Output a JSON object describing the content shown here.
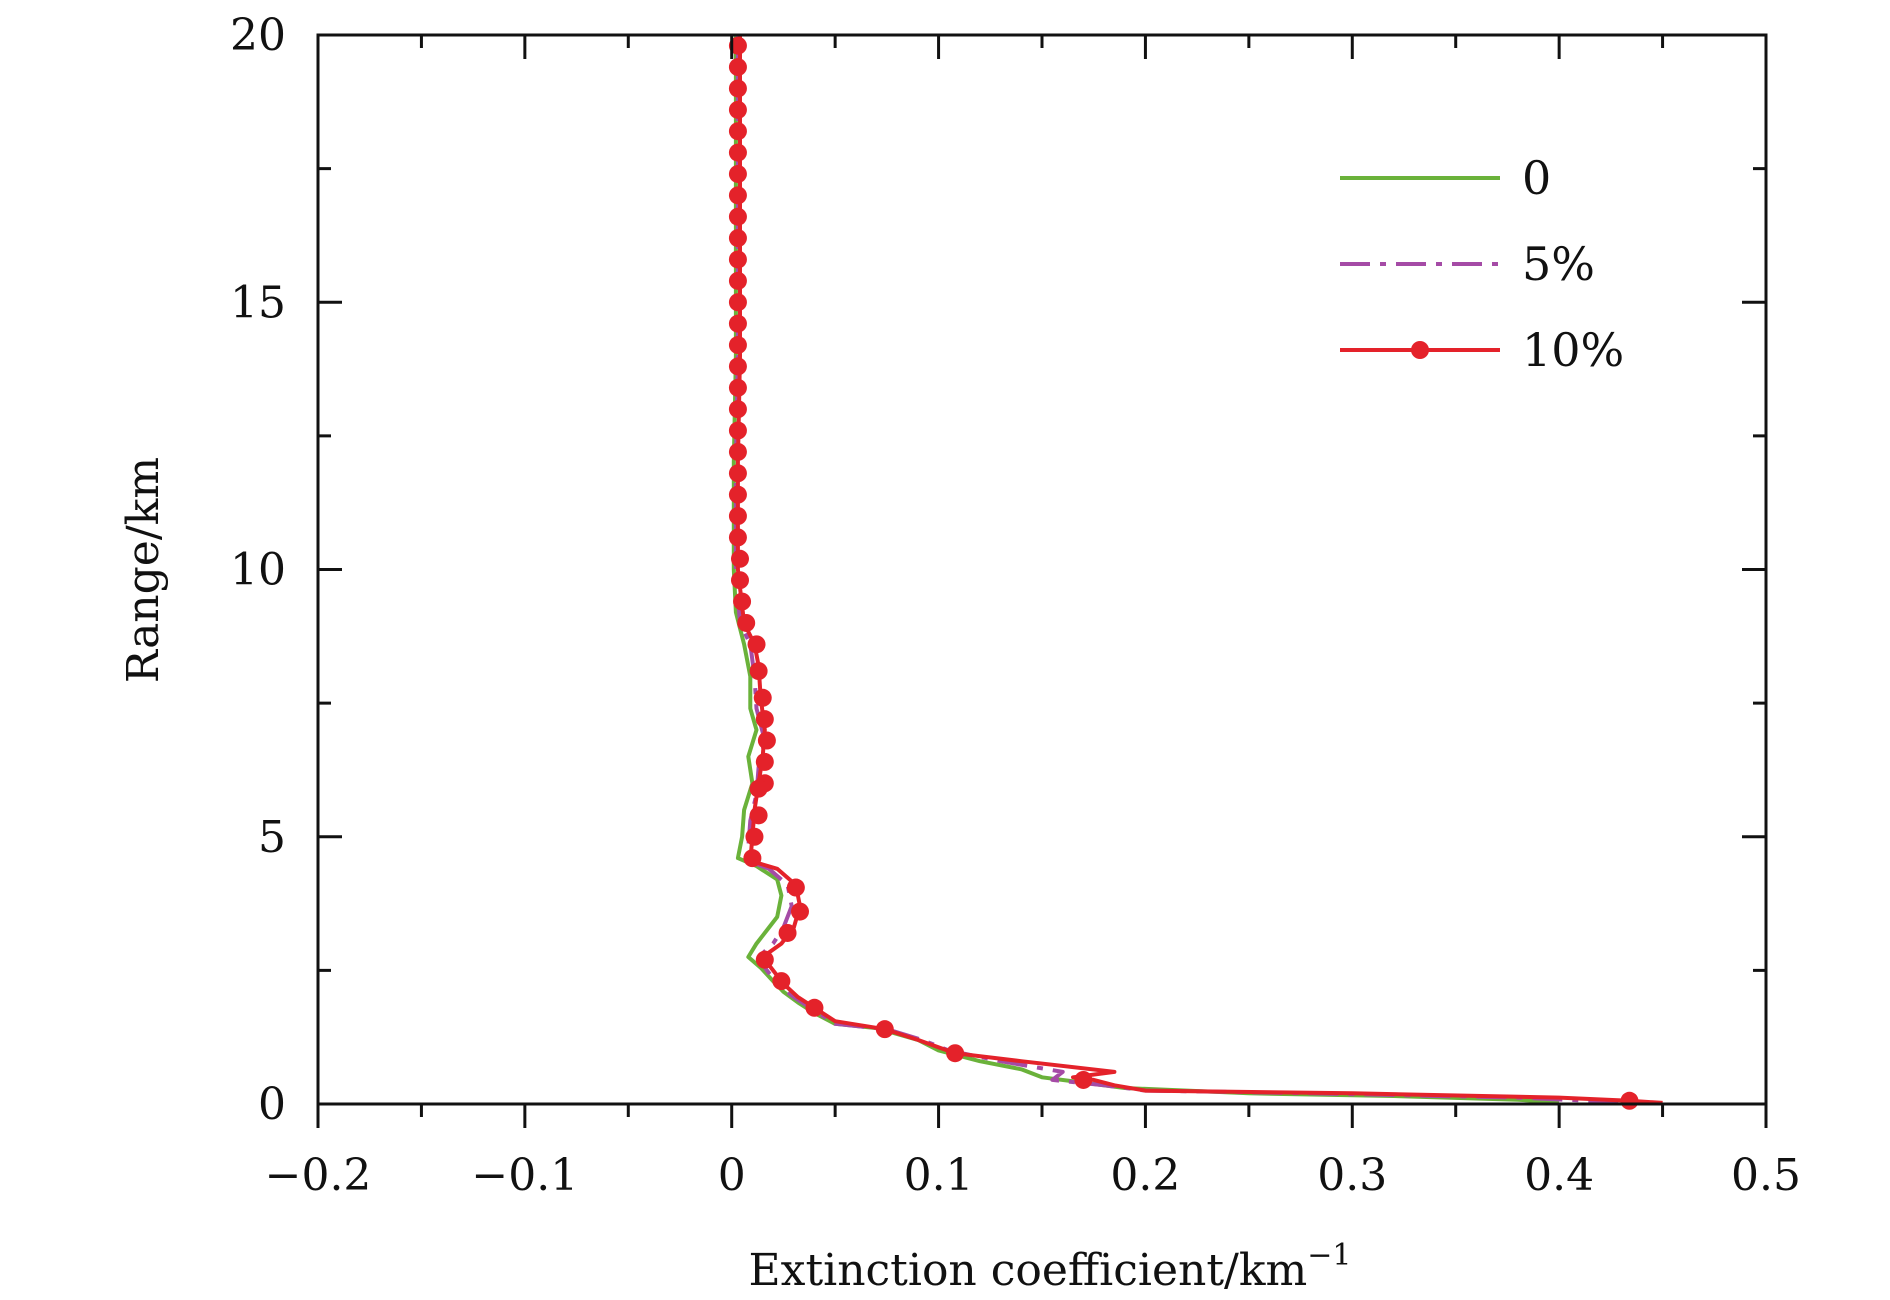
{
  "chart_data": {
    "type": "line",
    "xlabel": "Extinction coefficient/km",
    "xlabel_sup": "−1",
    "ylabel": "Range/km",
    "xlim": [
      -0.2,
      0.5
    ],
    "ylim": [
      0,
      20
    ],
    "x_ticks": [
      -0.2,
      -0.1,
      0,
      0.1,
      0.2,
      0.3,
      0.4,
      0.5
    ],
    "x_tick_labels": [
      "−0.2",
      "−0.1",
      "0",
      "0.1",
      "0.2",
      "0.3",
      "0.4",
      "0.5"
    ],
    "y_ticks": [
      0,
      5,
      10,
      15,
      20
    ],
    "y_tick_labels": [
      "0",
      "5",
      "10",
      "15",
      "20"
    ],
    "grid": false,
    "legend_position": "top-right",
    "series": [
      {
        "name": "0",
        "color": "#6ab23a",
        "style": "solid",
        "points": [
          [
            0.002,
            20
          ],
          [
            0.002,
            18
          ],
          [
            0.002,
            16
          ],
          [
            0.002,
            14
          ],
          [
            0.001,
            12
          ],
          [
            0.001,
            10
          ],
          [
            0.002,
            9.2
          ],
          [
            0.006,
            8.6
          ],
          [
            0.009,
            8.0
          ],
          [
            0.009,
            7.4
          ],
          [
            0.012,
            7.0
          ],
          [
            0.008,
            6.5
          ],
          [
            0.01,
            6.0
          ],
          [
            0.006,
            5.5
          ],
          [
            0.005,
            5.0
          ],
          [
            0.003,
            4.6
          ],
          [
            0.012,
            4.45
          ],
          [
            0.022,
            4.2
          ],
          [
            0.024,
            3.9
          ],
          [
            0.022,
            3.5
          ],
          [
            0.018,
            3.3
          ],
          [
            0.012,
            3.0
          ],
          [
            0.008,
            2.75
          ],
          [
            0.014,
            2.55
          ],
          [
            0.02,
            2.3
          ],
          [
            0.025,
            2.1
          ],
          [
            0.032,
            1.9
          ],
          [
            0.04,
            1.7
          ],
          [
            0.05,
            1.5
          ],
          [
            0.07,
            1.42
          ],
          [
            0.09,
            1.2
          ],
          [
            0.1,
            1.0
          ],
          [
            0.12,
            0.8
          ],
          [
            0.14,
            0.65
          ],
          [
            0.15,
            0.5
          ],
          [
            0.17,
            0.4
          ],
          [
            0.19,
            0.3
          ],
          [
            0.25,
            0.2
          ],
          [
            0.32,
            0.15
          ],
          [
            0.38,
            0.08
          ],
          [
            0.4,
            0.03
          ]
        ]
      },
      {
        "name": "5%",
        "color": "#a54ba6",
        "style": "dashdot",
        "points": [
          [
            0.003,
            20
          ],
          [
            0.003,
            18
          ],
          [
            0.003,
            16
          ],
          [
            0.003,
            14
          ],
          [
            0.002,
            12
          ],
          [
            0.002,
            10
          ],
          [
            0.004,
            9.0
          ],
          [
            0.009,
            8.6
          ],
          [
            0.011,
            8.0
          ],
          [
            0.012,
            7.4
          ],
          [
            0.016,
            6.8
          ],
          [
            0.013,
            6.3
          ],
          [
            0.012,
            5.8
          ],
          [
            0.009,
            5.3
          ],
          [
            0.008,
            4.8
          ],
          [
            0.008,
            4.55
          ],
          [
            0.018,
            4.4
          ],
          [
            0.027,
            4.1
          ],
          [
            0.029,
            3.7
          ],
          [
            0.025,
            3.3
          ],
          [
            0.02,
            3.0
          ],
          [
            0.013,
            2.75
          ],
          [
            0.017,
            2.5
          ],
          [
            0.022,
            2.25
          ],
          [
            0.03,
            2.0
          ],
          [
            0.04,
            1.75
          ],
          [
            0.05,
            1.5
          ],
          [
            0.075,
            1.4
          ],
          [
            0.092,
            1.2
          ],
          [
            0.105,
            1.0
          ],
          [
            0.13,
            0.8
          ],
          [
            0.16,
            0.6
          ],
          [
            0.155,
            0.45
          ],
          [
            0.18,
            0.35
          ],
          [
            0.2,
            0.25
          ],
          [
            0.28,
            0.2
          ],
          [
            0.38,
            0.12
          ],
          [
            0.42,
            0.05
          ],
          [
            0.44,
            0.02
          ]
        ]
      },
      {
        "name": "10%",
        "color": "#e4222a",
        "style": "solid-dots",
        "points": [
          [
            0.004,
            20
          ],
          [
            0.004,
            18
          ],
          [
            0.004,
            16
          ],
          [
            0.004,
            14
          ],
          [
            0.003,
            12
          ],
          [
            0.003,
            10
          ],
          [
            0.006,
            9.0
          ],
          [
            0.011,
            8.6
          ],
          [
            0.013,
            8.2
          ],
          [
            0.014,
            7.6
          ],
          [
            0.016,
            7.0
          ],
          [
            0.015,
            6.5
          ],
          [
            0.013,
            6.0
          ],
          [
            0.011,
            5.5
          ],
          [
            0.01,
            5.0
          ],
          [
            0.009,
            4.55
          ],
          [
            0.022,
            4.4
          ],
          [
            0.031,
            4.1
          ],
          [
            0.033,
            3.7
          ],
          [
            0.03,
            3.3
          ],
          [
            0.024,
            3.0
          ],
          [
            0.015,
            2.75
          ],
          [
            0.02,
            2.5
          ],
          [
            0.025,
            2.25
          ],
          [
            0.032,
            2.0
          ],
          [
            0.04,
            1.8
          ],
          [
            0.05,
            1.55
          ],
          [
            0.074,
            1.4
          ],
          [
            0.09,
            1.2
          ],
          [
            0.108,
            0.95
          ],
          [
            0.14,
            0.8
          ],
          [
            0.185,
            0.6
          ],
          [
            0.165,
            0.5
          ],
          [
            0.175,
            0.45
          ],
          [
            0.185,
            0.35
          ],
          [
            0.2,
            0.25
          ],
          [
            0.3,
            0.2
          ],
          [
            0.4,
            0.12
          ],
          [
            0.434,
            0.06
          ],
          [
            0.45,
            0.02
          ]
        ],
        "markers": [
          [
            0.003,
            19.8
          ],
          [
            0.003,
            19.4
          ],
          [
            0.003,
            19.0
          ],
          [
            0.003,
            18.6
          ],
          [
            0.003,
            18.2
          ],
          [
            0.003,
            17.8
          ],
          [
            0.003,
            17.4
          ],
          [
            0.003,
            17.0
          ],
          [
            0.003,
            16.6
          ],
          [
            0.003,
            16.2
          ],
          [
            0.003,
            15.8
          ],
          [
            0.003,
            15.4
          ],
          [
            0.003,
            15.0
          ],
          [
            0.003,
            14.6
          ],
          [
            0.003,
            14.2
          ],
          [
            0.003,
            13.8
          ],
          [
            0.003,
            13.4
          ],
          [
            0.003,
            13.0
          ],
          [
            0.003,
            12.6
          ],
          [
            0.003,
            12.2
          ],
          [
            0.003,
            11.8
          ],
          [
            0.003,
            11.4
          ],
          [
            0.003,
            11.0
          ],
          [
            0.003,
            10.6
          ],
          [
            0.004,
            10.2
          ],
          [
            0.004,
            9.8
          ],
          [
            0.005,
            9.4
          ],
          [
            0.007,
            9.0
          ],
          [
            0.012,
            8.6
          ],
          [
            0.013,
            8.1
          ],
          [
            0.015,
            7.6
          ],
          [
            0.016,
            7.2
          ],
          [
            0.017,
            6.8
          ],
          [
            0.016,
            6.4
          ],
          [
            0.016,
            6.0
          ],
          [
            0.013,
            5.9
          ],
          [
            0.013,
            5.4
          ],
          [
            0.011,
            5.0
          ],
          [
            0.01,
            4.6
          ],
          [
            0.031,
            4.05
          ],
          [
            0.033,
            3.6
          ],
          [
            0.027,
            3.2
          ],
          [
            0.016,
            2.7
          ],
          [
            0.024,
            2.3
          ],
          [
            0.04,
            1.8
          ],
          [
            0.074,
            1.4
          ],
          [
            0.108,
            0.95
          ],
          [
            0.17,
            0.45
          ],
          [
            0.434,
            0.06
          ]
        ]
      }
    ]
  }
}
